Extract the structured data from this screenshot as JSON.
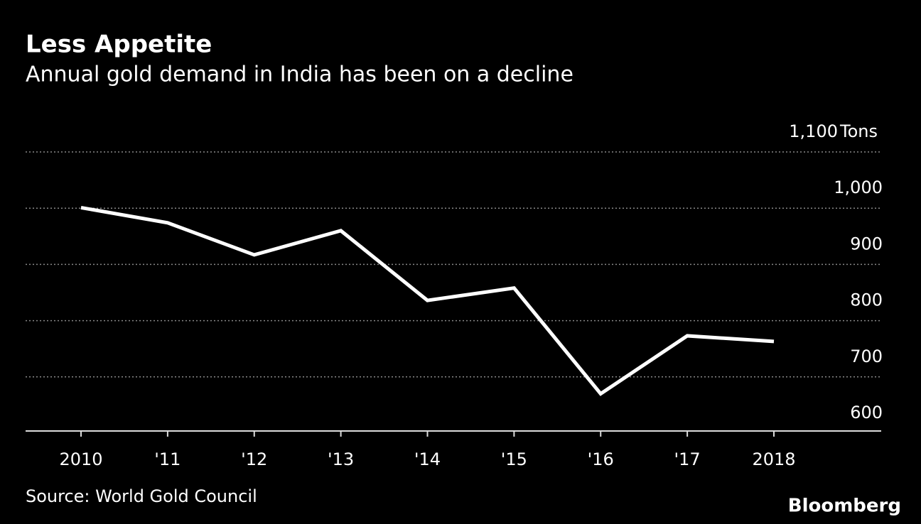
{
  "chart_data": {
    "type": "line",
    "title": "Less Appetite",
    "subtitle": "Annual gold demand in India has been on a decline",
    "y_unit": "Tons",
    "categories": [
      "2010",
      "'11",
      "'12",
      "'13",
      "'14",
      "'15",
      "'16",
      "'17",
      "2018"
    ],
    "series": [
      {
        "name": "Annual gold demand in India",
        "color": "#ffffff",
        "values": [
          1001,
          974,
          917,
          960,
          836,
          858,
          670,
          773,
          763
        ]
      }
    ],
    "ylim": [
      600,
      1100
    ],
    "yticks": [
      600,
      700,
      800,
      900,
      {
        "value": 1000,
        "label": "1,000"
      },
      {
        "value": 1100,
        "label": "1,100"
      }
    ],
    "grid": true,
    "source": "Source: World Gold Council",
    "branding": "Bloomberg"
  }
}
